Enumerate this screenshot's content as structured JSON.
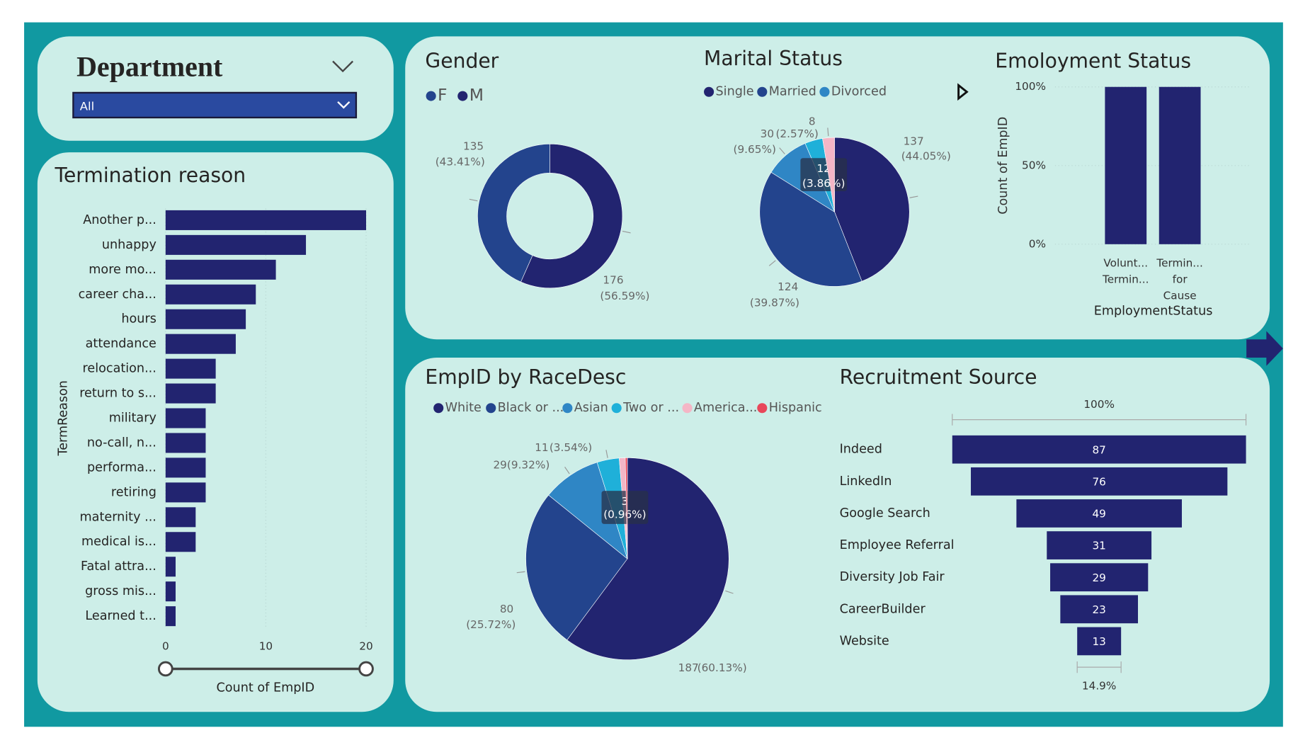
{
  "slicer": {
    "title": "Department",
    "selected": "All"
  },
  "chart_data": [
    {
      "type": "bar",
      "orientation": "horizontal",
      "title": "Termination reason",
      "categories": [
        "Another p...",
        "unhappy",
        "more mo...",
        "career cha...",
        "hours",
        "attendance",
        "relocation...",
        "return to s...",
        "military",
        "no-call, n...",
        "performa...",
        "retiring",
        "maternity ...",
        "medical is...",
        "Fatal attra...",
        "gross mis...",
        "Learned t..."
      ],
      "values": [
        20,
        14,
        11,
        9,
        8,
        7,
        5,
        5,
        4,
        4,
        4,
        4,
        3,
        3,
        1,
        1,
        1
      ],
      "color": "#222470",
      "xlim": [
        0,
        20
      ],
      "xticks": [
        0,
        10,
        20
      ],
      "grid": true,
      "x_label": "Count of EmpID",
      "y_label": "TermReason"
    },
    {
      "type": "donut",
      "title": "Gender",
      "categories": [
        "F",
        "M"
      ],
      "values": [
        135,
        176
      ],
      "percent_labels": [
        "(43.41%)",
        "(56.59%)"
      ],
      "colors": [
        "#23448d",
        "#222470"
      ]
    },
    {
      "type": "pie",
      "title": "Marital Status",
      "categories": [
        "Single",
        "Married",
        "Divorced",
        null,
        null
      ],
      "values": [
        137,
        124,
        30,
        12,
        8
      ],
      "percent_labels": [
        "(44.05%)",
        "(39.87%)",
        "(9.65%)",
        "(3.86%)",
        "(2.57%)"
      ],
      "colors": [
        "#222470",
        "#23448d",
        "#2f86c5",
        "#1fb0d9",
        "#f4b6c6"
      ]
    },
    {
      "type": "bar",
      "title": "Emoloyment Status",
      "categories": [
        "Volunt... Termin...",
        "Termin... for Cause"
      ],
      "values": [
        100,
        100
      ],
      "color": "#222470",
      "ylim": [
        0,
        100
      ],
      "yticks": [
        {
          "value": 0,
          "label": "0%"
        },
        {
          "value": 50,
          "label": "50%"
        },
        {
          "value": 100,
          "label": "100%"
        }
      ],
      "grid": true,
      "x_label": "EmploymentStatus",
      "y_label": "Count of EmpID"
    },
    {
      "type": "pie",
      "title": "EmpID by RaceDesc",
      "categories": [
        "White",
        "Black or ...",
        "Asian",
        "Two or ...",
        "America...",
        "Hispanic"
      ],
      "values": [
        187,
        80,
        29,
        11,
        3,
        1
      ],
      "percent_labels": [
        "(60.13%)",
        "(25.72%)",
        "(9.32%)",
        "(3.54%)",
        "(0.96%)",
        null
      ],
      "colors": [
        "#222470",
        "#23448d",
        "#2f86c5",
        "#1fb0d9",
        "#f4b6c6",
        "#e8475a"
      ]
    },
    {
      "type": "funnel",
      "title": "Recruitment Source",
      "categories": [
        "Indeed",
        "LinkedIn",
        "Google Search",
        "Employee Referral",
        "Diversity Job Fair",
        "CareerBuilder",
        "Website"
      ],
      "values": [
        87,
        76,
        49,
        31,
        29,
        23,
        13
      ],
      "color": "#222470",
      "top_label": "100%",
      "bottom_label": "14.9%"
    }
  ]
}
